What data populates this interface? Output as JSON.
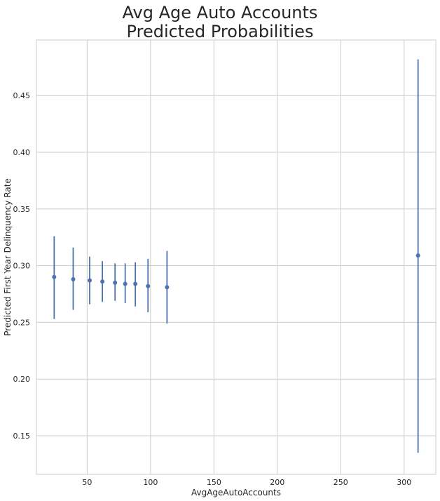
{
  "chart_data": {
    "type": "scatter",
    "title": "Avg Age Auto Accounts\nPredicted Probabilities",
    "title_lines": [
      "Avg Age Auto Accounts",
      "Predicted Probabilities"
    ],
    "xlabel": "AvgAgeAutoAccounts",
    "ylabel": "Predicted First Year Delinquency Rate",
    "xlim": [
      10,
      325
    ],
    "ylim": [
      0.116,
      0.499
    ],
    "xticks": [
      50,
      100,
      150,
      200,
      250,
      300
    ],
    "xtick_labels": [
      "50",
      "100",
      "150",
      "200",
      "250",
      "300"
    ],
    "yticks": [
      0.15,
      0.2,
      0.25,
      0.3,
      0.35,
      0.4,
      0.45
    ],
    "ytick_labels": [
      "0.15",
      "0.20",
      "0.25",
      "0.30",
      "0.35",
      "0.40",
      "0.45"
    ],
    "grid": true,
    "color": "#4c72b0",
    "points": [
      {
        "x": 24,
        "y": 0.29,
        "ylow": 0.253,
        "yhigh": 0.326
      },
      {
        "x": 39,
        "y": 0.288,
        "ylow": 0.261,
        "yhigh": 0.316
      },
      {
        "x": 52,
        "y": 0.287,
        "ylow": 0.266,
        "yhigh": 0.308
      },
      {
        "x": 62,
        "y": 0.286,
        "ylow": 0.268,
        "yhigh": 0.304
      },
      {
        "x": 72,
        "y": 0.285,
        "ylow": 0.269,
        "yhigh": 0.302
      },
      {
        "x": 80,
        "y": 0.284,
        "ylow": 0.267,
        "yhigh": 0.302
      },
      {
        "x": 88,
        "y": 0.284,
        "ylow": 0.264,
        "yhigh": 0.303
      },
      {
        "x": 98,
        "y": 0.282,
        "ylow": 0.259,
        "yhigh": 0.306
      },
      {
        "x": 113,
        "y": 0.281,
        "ylow": 0.249,
        "yhigh": 0.313
      },
      {
        "x": 311,
        "y": 0.309,
        "ylow": 0.135,
        "yhigh": 0.482
      }
    ]
  }
}
